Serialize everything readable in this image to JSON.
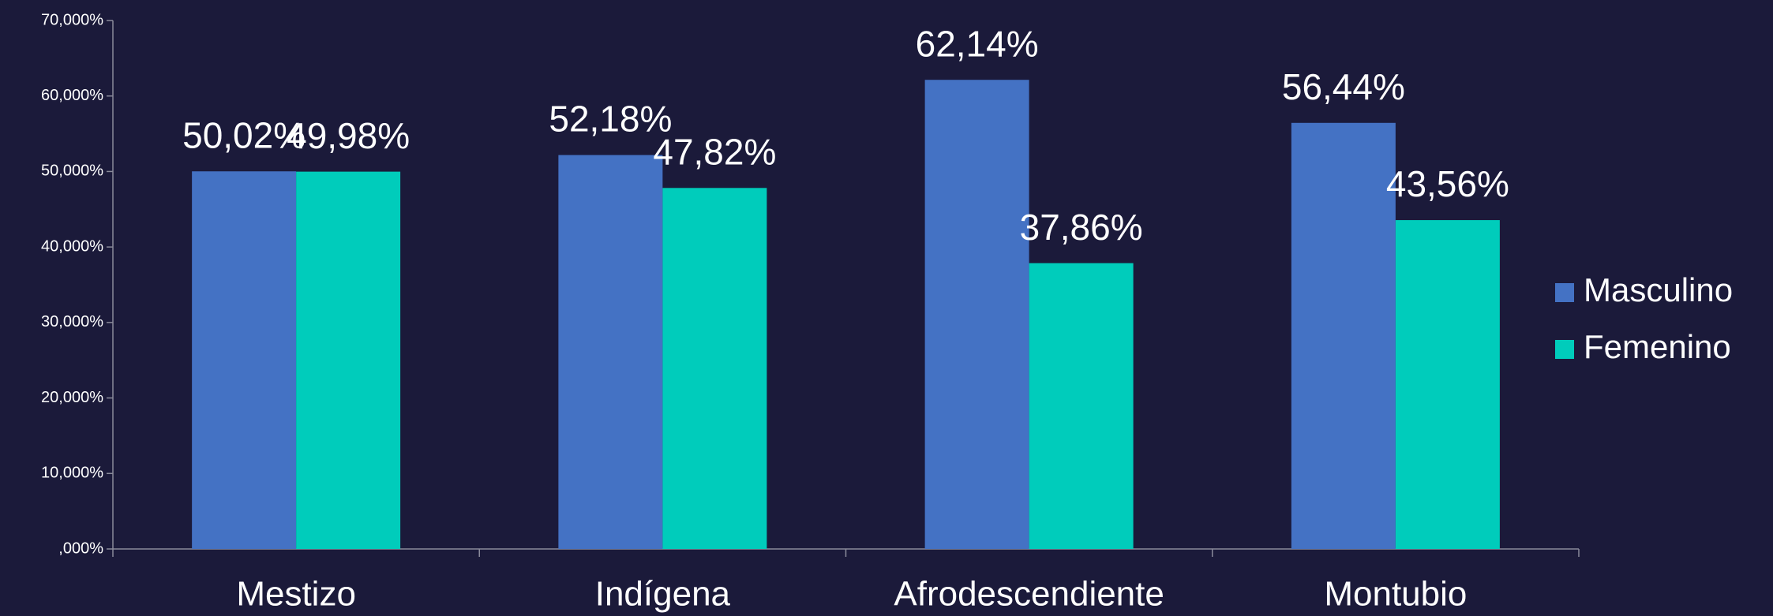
{
  "chart_data": {
    "type": "bar",
    "categories": [
      "Mestizo",
      "Indígena",
      "Afrodescendiente",
      "Montubio"
    ],
    "series": [
      {
        "name": "Masculino",
        "color": "#4472c4",
        "values": [
          50.02,
          52.18,
          62.14,
          56.44
        ],
        "value_labels": [
          "50,02%",
          "52,18%",
          "62,14%",
          "56,44%"
        ]
      },
      {
        "name": "Femenino",
        "color": "#00ccbb",
        "values": [
          49.98,
          47.82,
          37.86,
          43.56
        ],
        "value_labels": [
          "49,98%",
          "47,82%",
          "37,86%",
          "43,56%"
        ]
      }
    ],
    "ylim": [
      0,
      70
    ],
    "yticks": [
      {
        "value": 0,
        "label": ",000%"
      },
      {
        "value": 10,
        "label": "10,000%"
      },
      {
        "value": 20,
        "label": "20,000%"
      },
      {
        "value": 30,
        "label": "30,000%"
      },
      {
        "value": 40,
        "label": "40,000%"
      },
      {
        "value": 50,
        "label": "50,000%"
      },
      {
        "value": 60,
        "label": "60,000%"
      },
      {
        "value": 70,
        "label": "70,000%"
      }
    ],
    "grid": false,
    "legend": "right"
  }
}
